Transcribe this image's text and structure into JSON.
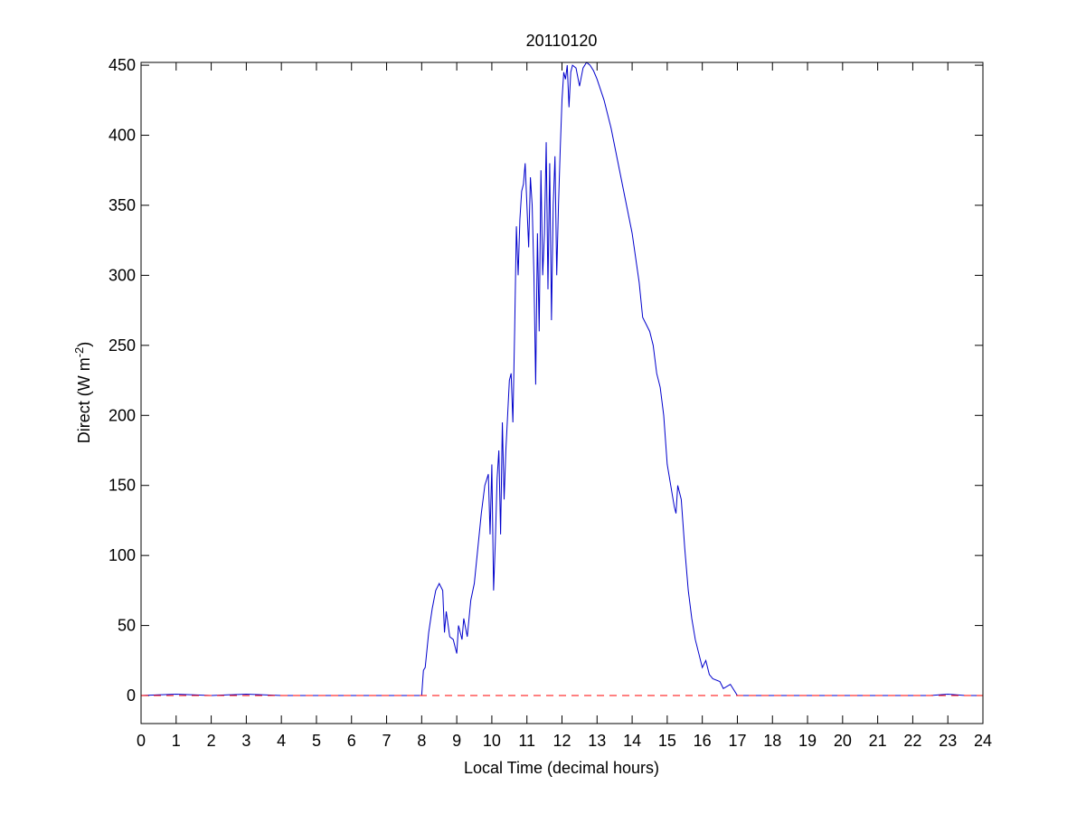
{
  "chart_data": {
    "type": "line",
    "title": "20110120",
    "xlabel": "Local Time (decimal hours)",
    "ylabel": [
      "Direct (W m",
      "-2",
      ")"
    ],
    "xlim": [
      0,
      24
    ],
    "ylim": [
      -20,
      452
    ],
    "xticks": [
      0,
      1,
      2,
      3,
      4,
      5,
      6,
      7,
      8,
      9,
      10,
      11,
      12,
      13,
      14,
      15,
      16,
      17,
      18,
      19,
      20,
      21,
      22,
      23,
      24
    ],
    "yticks": [
      0,
      50,
      100,
      150,
      200,
      250,
      300,
      350,
      400,
      450
    ],
    "series": [
      {
        "color": "#0000cc",
        "style": "solid",
        "x": [
          0,
          1,
          2,
          3,
          4,
          5,
          6,
          7,
          8,
          8.05,
          8.1,
          8.2,
          8.3,
          8.4,
          8.5,
          8.6,
          8.65,
          8.7,
          8.8,
          8.9,
          9.0,
          9.05,
          9.15,
          9.2,
          9.3,
          9.4,
          9.5,
          9.6,
          9.7,
          9.8,
          9.9,
          9.95,
          10.0,
          10.05,
          10.1,
          10.15,
          10.2,
          10.25,
          10.3,
          10.35,
          10.4,
          10.45,
          10.5,
          10.55,
          10.6,
          10.65,
          10.7,
          10.75,
          10.8,
          10.85,
          10.9,
          10.95,
          11.0,
          11.05,
          11.1,
          11.15,
          11.2,
          11.25,
          11.3,
          11.35,
          11.4,
          11.45,
          11.5,
          11.55,
          11.6,
          11.65,
          11.7,
          11.75,
          11.8,
          11.85,
          11.9,
          11.95,
          12.0,
          12.05,
          12.1,
          12.15,
          12.2,
          12.25,
          12.3,
          12.4,
          12.5,
          12.6,
          12.7,
          12.8,
          12.9,
          13.0,
          13.2,
          13.4,
          13.6,
          13.8,
          14.0,
          14.2,
          14.3,
          14.4,
          14.5,
          14.6,
          14.7,
          14.8,
          14.9,
          15.0,
          15.1,
          15.2,
          15.25,
          15.3,
          15.4,
          15.5,
          15.6,
          15.7,
          15.8,
          15.9,
          16.0,
          16.1,
          16.2,
          16.3,
          16.5,
          16.6,
          16.8,
          17.0,
          18,
          19,
          20,
          21,
          22,
          22.5,
          23,
          23.5,
          24
        ],
        "values": [
          0,
          1,
          0,
          1,
          0,
          0,
          0,
          0,
          0,
          18,
          20,
          45,
          62,
          75,
          80,
          75,
          45,
          60,
          42,
          40,
          30,
          50,
          40,
          55,
          42,
          68,
          80,
          105,
          130,
          150,
          158,
          115,
          165,
          75,
          110,
          155,
          175,
          115,
          195,
          140,
          175,
          200,
          225,
          230,
          195,
          260,
          335,
          300,
          340,
          360,
          365,
          380,
          350,
          320,
          370,
          350,
          300,
          222,
          330,
          260,
          375,
          300,
          330,
          395,
          290,
          380,
          268,
          350,
          385,
          300,
          350,
          390,
          425,
          445,
          440,
          450,
          420,
          445,
          450,
          448,
          435,
          448,
          452,
          450,
          446,
          440,
          425,
          405,
          380,
          355,
          330,
          295,
          270,
          265,
          260,
          250,
          230,
          220,
          200,
          165,
          150,
          135,
          130,
          150,
          140,
          105,
          75,
          55,
          40,
          30,
          20,
          25,
          15,
          12,
          10,
          5,
          8,
          0,
          0,
          0,
          0,
          0,
          0,
          0,
          1,
          0,
          0
        ]
      },
      {
        "color": "#ff0000",
        "style": "dashed",
        "x": [
          0,
          24
        ],
        "values": [
          0,
          0
        ]
      }
    ]
  }
}
